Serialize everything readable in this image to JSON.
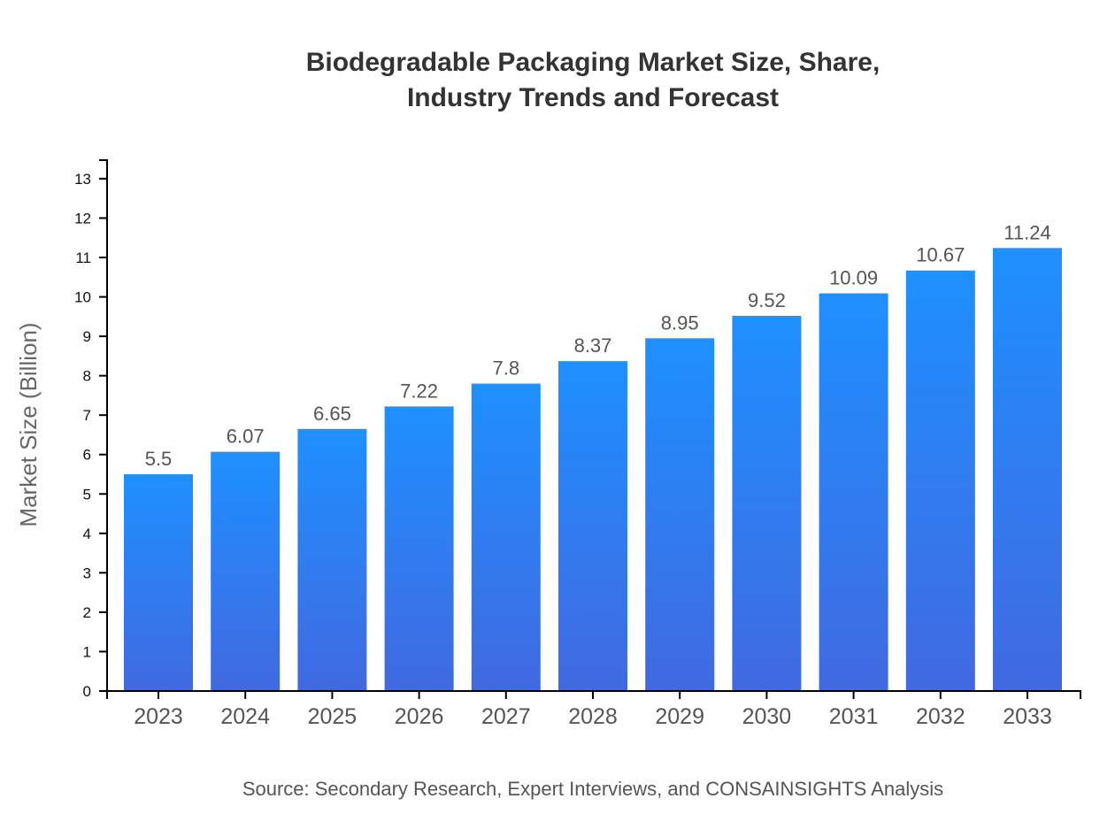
{
  "chart_data": {
    "type": "bar",
    "title_lines": [
      "Biodegradable Packaging Market Size, Share,",
      "Industry Trends and Forecast"
    ],
    "xlabel": "",
    "ylabel": "Market Size (Billion)",
    "categories": [
      "2023",
      "2024",
      "2025",
      "2026",
      "2027",
      "2028",
      "2029",
      "2030",
      "2031",
      "2032",
      "2033"
    ],
    "values": [
      5.5,
      6.07,
      6.65,
      7.22,
      7.8,
      8.37,
      8.95,
      9.52,
      10.09,
      10.67,
      11.24
    ],
    "data_labels": [
      "5.5",
      "6.07",
      "6.65",
      "7.22",
      "7.8",
      "8.37",
      "8.95",
      "9.52",
      "10.09",
      "10.67",
      "11.24"
    ],
    "ylim": [
      0,
      13.47
    ],
    "yticks": [
      0,
      1,
      2,
      3,
      4,
      5,
      6,
      7,
      8,
      9,
      10,
      11,
      12,
      13
    ],
    "grid": false,
    "legend": "none",
    "colors": {
      "bar_top": "#1e90ff",
      "bar_bottom": "#4169e1"
    },
    "source": "Source: Secondary Research, Expert Interviews, and CONSAINSIGHTS Analysis"
  }
}
